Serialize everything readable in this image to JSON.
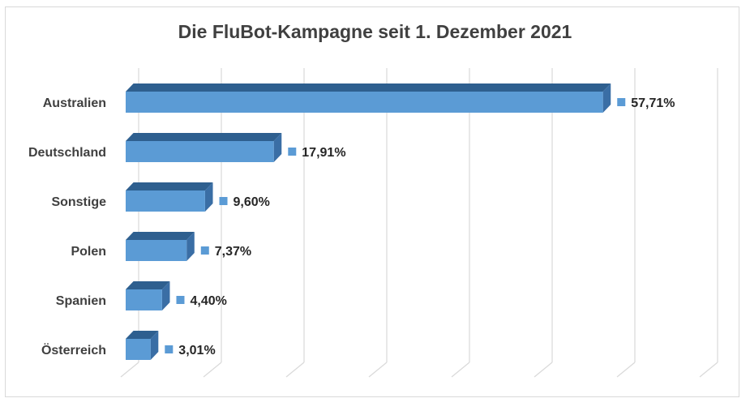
{
  "chart_data": {
    "type": "bar",
    "orientation": "horizontal",
    "three_d": true,
    "title": "Die FluBot-Kampagne seit 1. Dezember 2021",
    "categories": [
      "Australien",
      "Deutschland",
      "Sonstige",
      "Polen",
      "Spanien",
      "Österreich"
    ],
    "values": [
      57.71,
      17.91,
      9.6,
      7.37,
      4.4,
      3.01
    ],
    "value_labels": [
      "57,71%",
      "17,91%",
      "9,60%",
      "7,37%",
      "4,40%",
      "3,01%"
    ],
    "xlim": [
      0,
      70
    ],
    "grid": true,
    "legend_keys_in_labels": true,
    "bar_color": "#5b9bd5",
    "bar_top_color": "#2e5f8f",
    "bar_side_color": "#3a6ea5",
    "grid_color": "#d9d9d9"
  }
}
